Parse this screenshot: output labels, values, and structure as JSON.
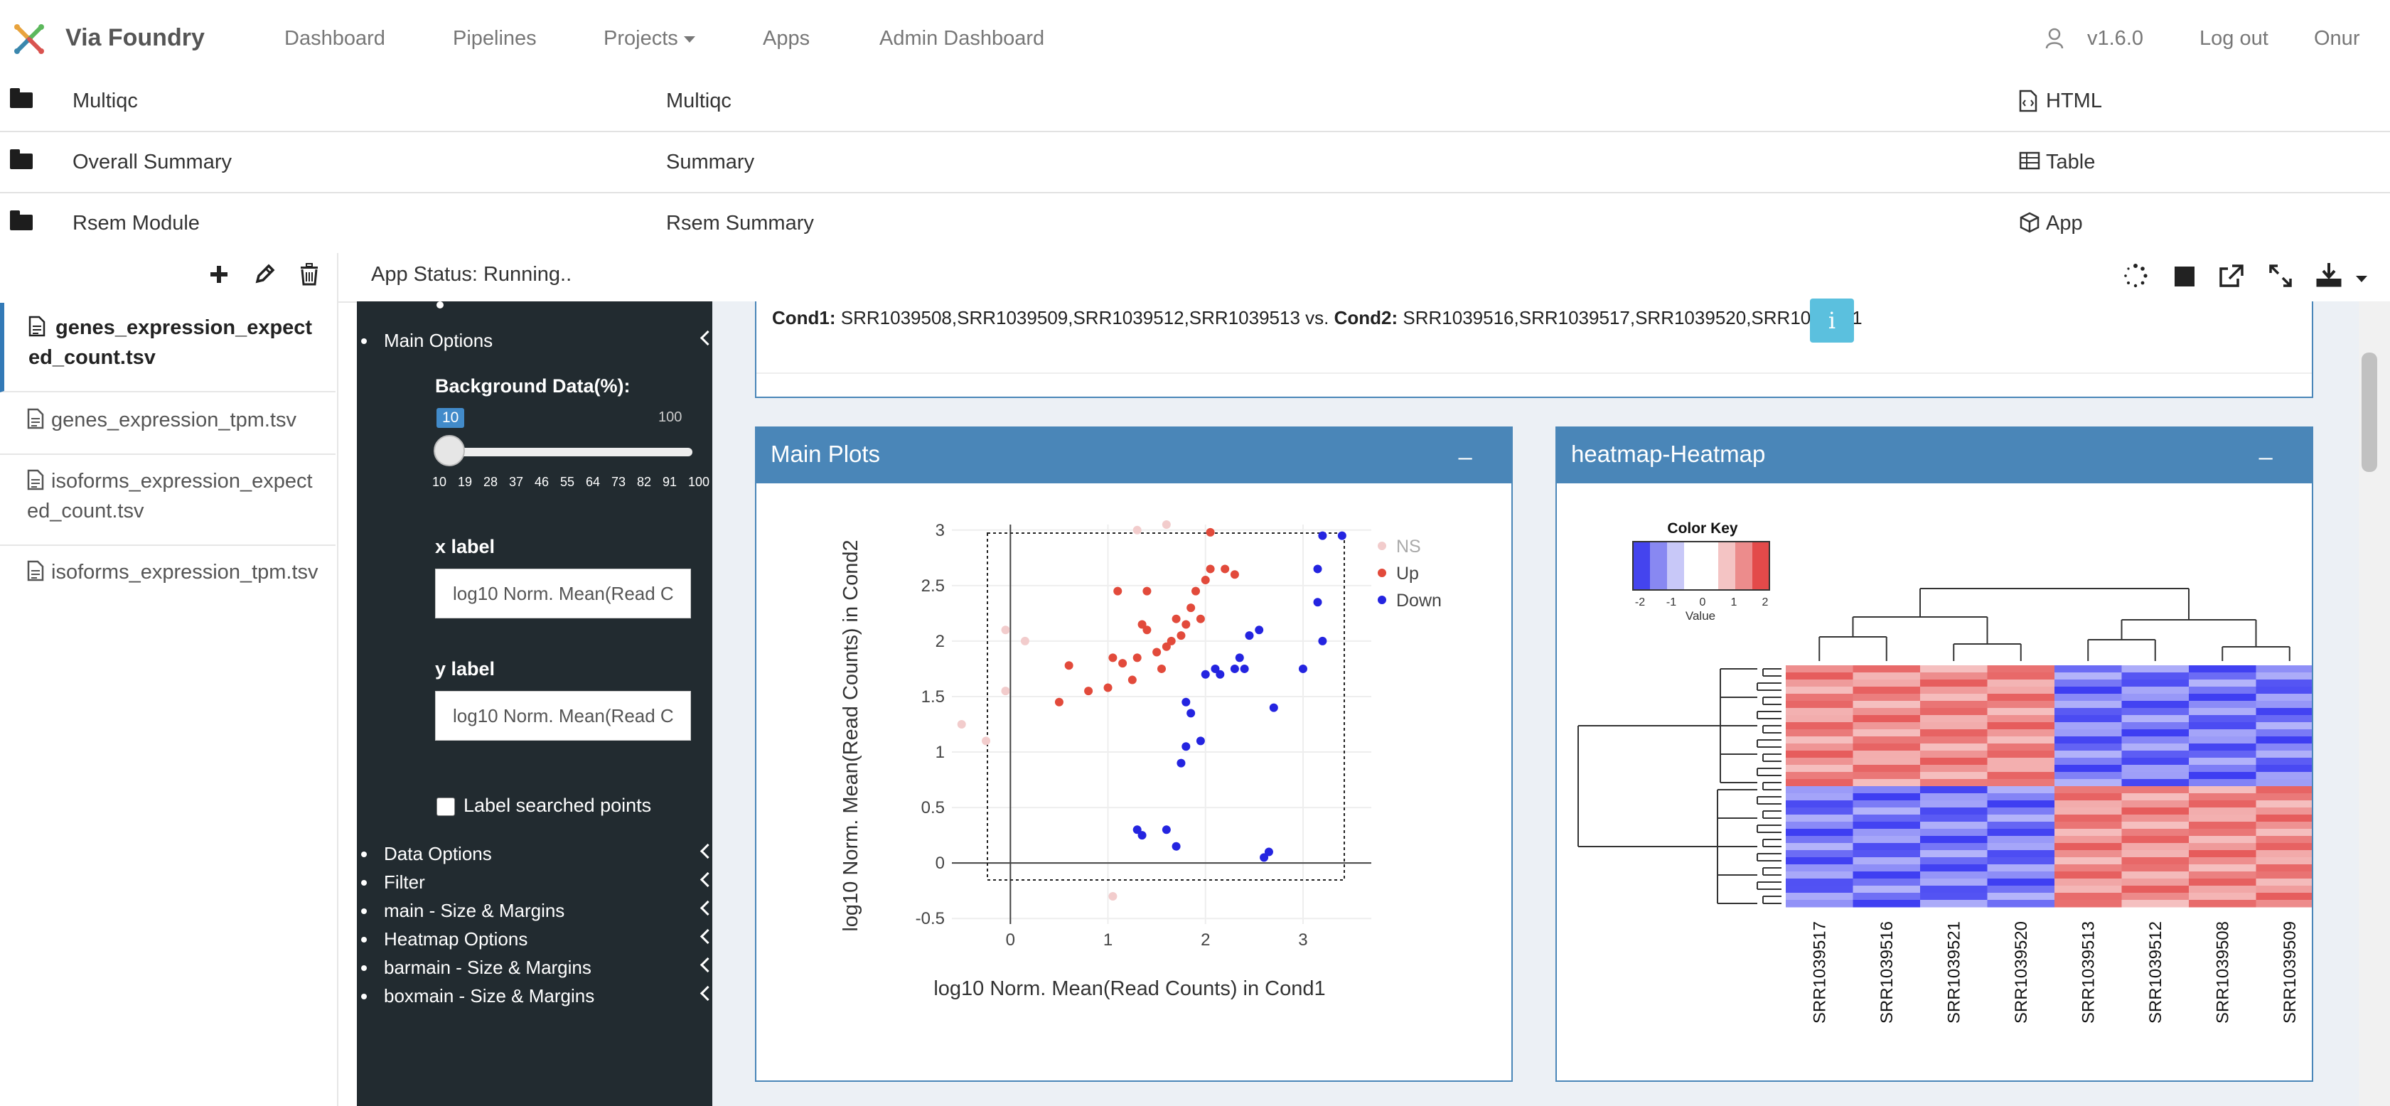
{
  "navbar": {
    "brand": "Via Foundry",
    "items": [
      "Dashboard",
      "Pipelines",
      "Projects",
      "Apps",
      "Admin Dashboard"
    ],
    "version": "v1.6.0",
    "logout": "Log out",
    "user": "Onur"
  },
  "reports": [
    {
      "name": "Multiqc",
      "description": "Multiqc",
      "type": "HTML"
    },
    {
      "name": "Overall Summary",
      "description": "Summary",
      "type": "Table"
    },
    {
      "name": "Rsem Module",
      "description": "Rsem Summary",
      "type": "App"
    }
  ],
  "files": [
    {
      "label": "genes_expression_expected_count.tsv",
      "active": true
    },
    {
      "label": "genes_expression_tpm.tsv",
      "active": false
    },
    {
      "label": "isoforms_expression_expected_count.tsv",
      "active": false
    },
    {
      "label": "isoforms_expression_tpm.tsv",
      "active": false
    }
  ],
  "app_status": "App Status: Running..",
  "sidebar": {
    "main_options": "Main Options",
    "background_label": "Background Data(%):",
    "slider": {
      "value": 10,
      "min": "10",
      "max": "100",
      "ticks": [
        "10",
        "19",
        "28",
        "37",
        "46",
        "55",
        "64",
        "73",
        "82",
        "91",
        "100"
      ]
    },
    "x_label_title": "x label",
    "x_label_value": "log10 Norm. Mean(Read Counts) in Cond1",
    "y_label_title": "y label",
    "y_label_value": "log10 Norm. Mean(Read Counts) in Cond2",
    "checkbox_label": "Label searched points",
    "sections": [
      "Data Options",
      "Filter",
      "main - Size & Margins",
      "Heatmap Options",
      "barmain - Size & Margins",
      "boxmain - Size & Margins"
    ]
  },
  "conditions": {
    "cond1_label": "Cond1:",
    "cond1_samples": "SRR1039508,SRR1039509,SRR1039512,SRR1039513",
    "vs": "vs.",
    "cond2_label": "Cond2:",
    "cond2_samples": "SRR1039516,SRR1039517,SRR1039520,SRR1039521",
    "info_icon": "i"
  },
  "main_plots": {
    "title": "Main Plots",
    "minimize": "_"
  },
  "heatmap_panel": {
    "title": "heatmap-Heatmap",
    "minimize": "_",
    "color_key_title": "Color Key",
    "color_key_ticks": [
      "-2",
      "-1",
      "0",
      "1",
      "2"
    ],
    "color_key_label": "Value",
    "columns": [
      "SRR1039517",
      "SRR1039516",
      "SRR1039521",
      "SRR1039520",
      "SRR1039513",
      "SRR1039512",
      "SRR1039508",
      "SRR1039509"
    ],
    "colors": {
      "low": "#3333ff",
      "mid": "#ffffff",
      "high": "#e34a4a"
    }
  },
  "chart_data": {
    "type": "scatter",
    "xlabel": "log10 Norm. Mean(Read Counts) in Cond1",
    "ylabel": "log10 Norm. Mean(Read Counts) in Cond2",
    "xlim": [
      -0.6,
      3.7
    ],
    "ylim": [
      -0.55,
      3.05
    ],
    "x_ticks": [
      0,
      1,
      2,
      3
    ],
    "y_ticks": [
      -0.5,
      0,
      0.5,
      1,
      1.5,
      2,
      2.5,
      3
    ],
    "grid": true,
    "legend_position": "top-right",
    "series": [
      {
        "name": "NS",
        "color": "#f2cccc",
        "points": [
          [
            -0.5,
            1.25
          ],
          [
            -0.25,
            1.1
          ],
          [
            -0.05,
            2.1
          ],
          [
            -0.05,
            1.55
          ],
          [
            0.15,
            2.0
          ],
          [
            1.05,
            -0.3
          ],
          [
            1.3,
            3.0
          ],
          [
            1.6,
            3.05
          ]
        ]
      },
      {
        "name": "Up",
        "color": "#e24a3b",
        "points": [
          [
            0.5,
            1.45
          ],
          [
            0.6,
            1.78
          ],
          [
            0.8,
            1.55
          ],
          [
            1.0,
            1.58
          ],
          [
            1.05,
            1.85
          ],
          [
            1.1,
            2.45
          ],
          [
            1.15,
            1.8
          ],
          [
            1.25,
            1.65
          ],
          [
            1.3,
            1.85
          ],
          [
            1.35,
            2.15
          ],
          [
            1.4,
            2.1
          ],
          [
            1.4,
            2.45
          ],
          [
            1.5,
            1.9
          ],
          [
            1.55,
            1.75
          ],
          [
            1.6,
            1.95
          ],
          [
            1.65,
            2.0
          ],
          [
            1.7,
            2.2
          ],
          [
            1.75,
            2.05
          ],
          [
            1.8,
            2.15
          ],
          [
            1.85,
            2.3
          ],
          [
            1.9,
            2.45
          ],
          [
            1.95,
            2.2
          ],
          [
            2.0,
            2.55
          ],
          [
            2.05,
            2.65
          ],
          [
            2.05,
            2.98
          ],
          [
            2.2,
            2.65
          ],
          [
            2.3,
            2.6
          ]
        ]
      },
      {
        "name": "Down",
        "color": "#2424e0",
        "points": [
          [
            1.3,
            0.3
          ],
          [
            1.35,
            0.25
          ],
          [
            1.6,
            0.3
          ],
          [
            1.7,
            0.15
          ],
          [
            1.75,
            0.9
          ],
          [
            1.8,
            1.05
          ],
          [
            1.8,
            1.45
          ],
          [
            1.85,
            1.35
          ],
          [
            1.95,
            1.1
          ],
          [
            2.0,
            1.7
          ],
          [
            2.1,
            1.75
          ],
          [
            2.15,
            1.7
          ],
          [
            2.3,
            1.75
          ],
          [
            2.35,
            1.85
          ],
          [
            2.4,
            1.75
          ],
          [
            2.45,
            2.05
          ],
          [
            2.55,
            2.1
          ],
          [
            2.6,
            0.05
          ],
          [
            2.65,
            0.1
          ],
          [
            2.7,
            1.4
          ],
          [
            3.0,
            1.75
          ],
          [
            3.15,
            2.65
          ],
          [
            3.15,
            2.35
          ],
          [
            3.2,
            2.0
          ],
          [
            3.2,
            2.95
          ],
          [
            3.4,
            2.95
          ]
        ]
      }
    ]
  }
}
